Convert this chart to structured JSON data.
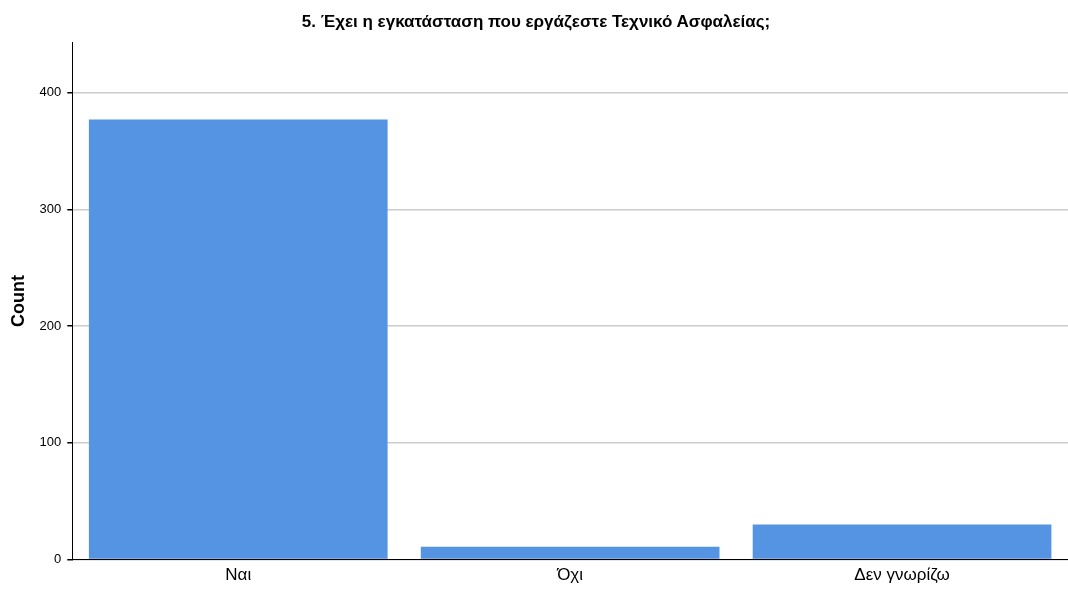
{
  "chart_data": {
    "type": "bar",
    "title": "5. Έχει η εγκατάσταση που εργάζεστε Τεχνικό Ασφαλείας;",
    "ylabel": "Count",
    "categories": [
      "Ναι",
      "Όχι",
      "Δεν γνωρίζω"
    ],
    "values": [
      377,
      11,
      30
    ],
    "color": "#5594e3",
    "ylim": [
      0,
      443
    ],
    "yticks": [
      0,
      100,
      200,
      300,
      400
    ],
    "grid": "y",
    "legend": false
  }
}
